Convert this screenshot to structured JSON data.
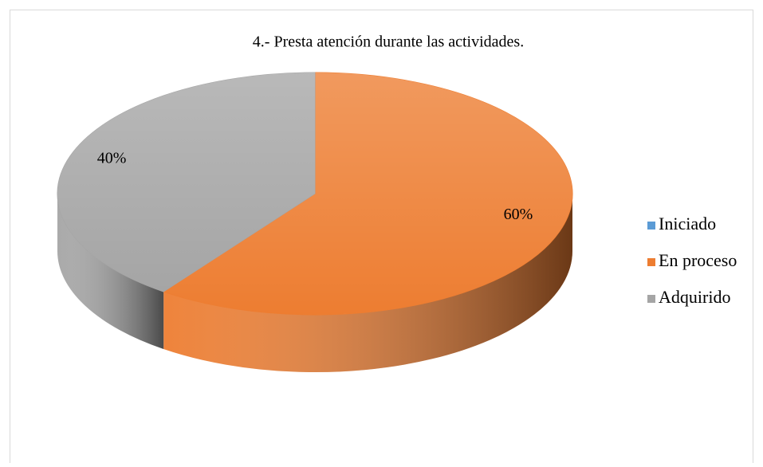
{
  "chart_data": {
    "type": "pie3d",
    "title": "4.- Presta atención durante las actividades.",
    "categories": [
      "Iniciado",
      "En proceso",
      "Adquirido"
    ],
    "values": [
      0,
      60,
      40
    ],
    "value_labels": [
      null,
      "60%",
      "40%"
    ],
    "colors": [
      "#5b9bd5",
      "#ed7d31",
      "#a5a5a5"
    ],
    "legend": "right"
  }
}
